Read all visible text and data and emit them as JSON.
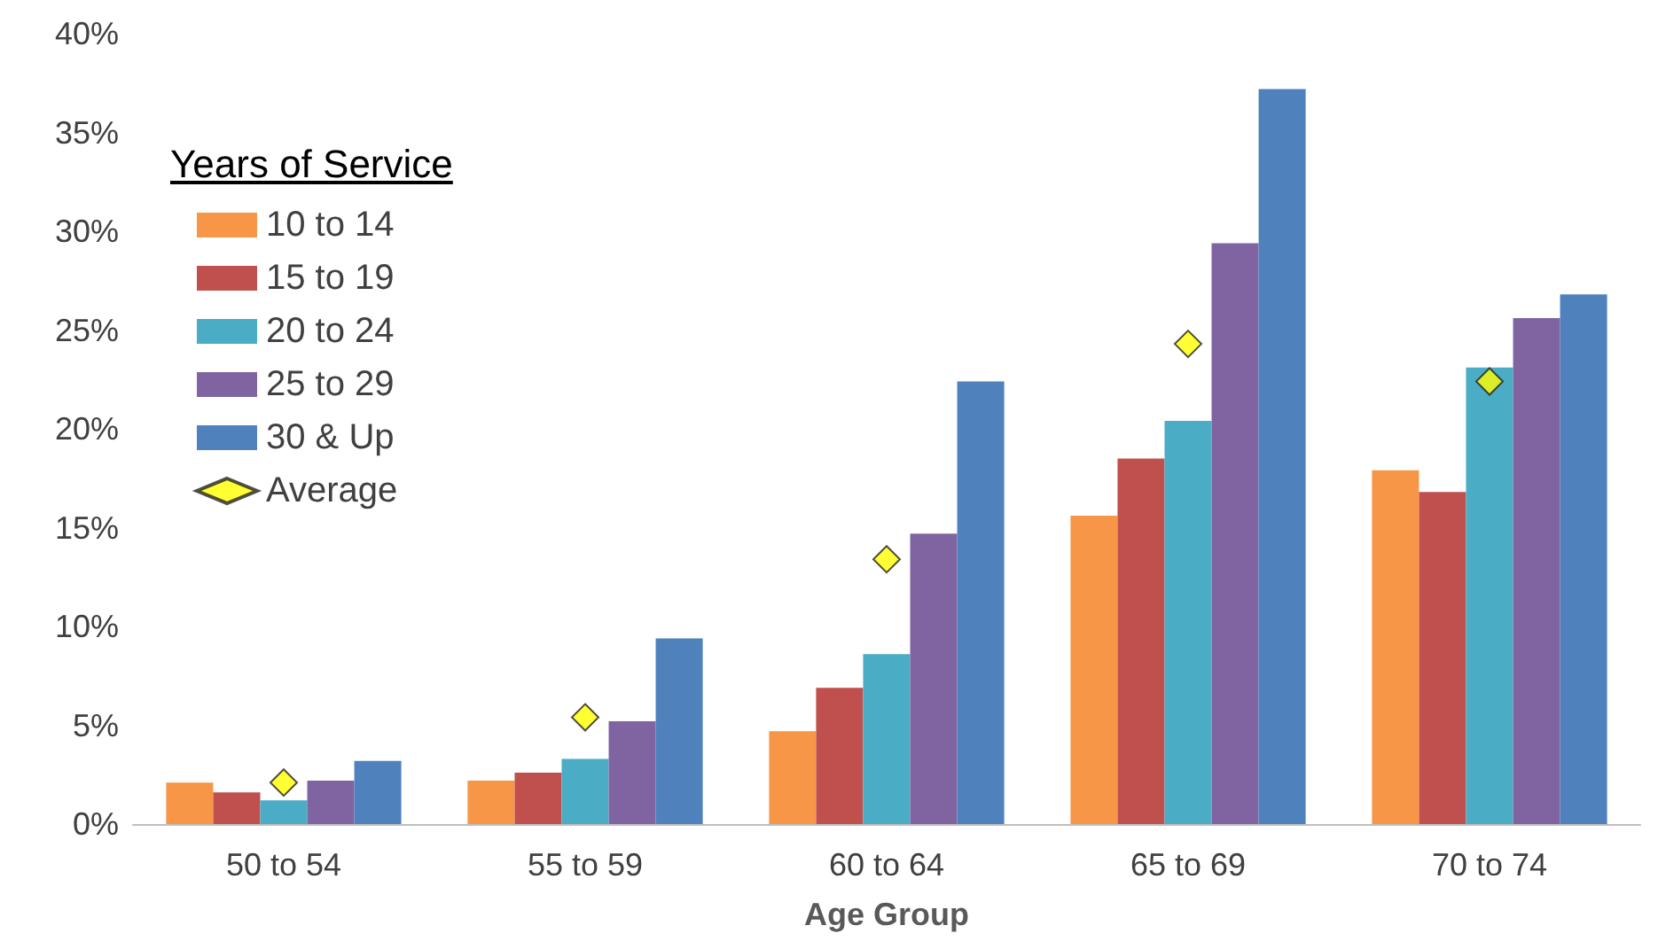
{
  "chart_data": {
    "type": "bar",
    "xlabel": "Age Group",
    "legend_title": "Years of Service",
    "legend": "top left",
    "categories": [
      "50 to 54",
      "55 to 59",
      "60 to 64",
      "65 to 69",
      "70 to 74"
    ],
    "series": [
      {
        "name": "10 to 14",
        "color": "#f79646",
        "values": [
          2.1,
          2.2,
          4.7,
          15.6,
          17.9
        ]
      },
      {
        "name": "15 to 19",
        "color": "#c0504d",
        "values": [
          1.6,
          2.6,
          6.9,
          18.5,
          16.8
        ]
      },
      {
        "name": "20 to 24",
        "color": "#4bacc6",
        "values": [
          1.2,
          3.3,
          8.6,
          20.4,
          23.1
        ]
      },
      {
        "name": "25 to 29",
        "color": "#8064a2",
        "values": [
          2.2,
          5.2,
          14.7,
          29.4,
          25.6
        ]
      },
      {
        "name": "30 & Up",
        "color": "#4f81bd",
        "values": [
          3.2,
          9.4,
          22.4,
          37.2,
          26.8
        ]
      },
      {
        "name": "Average",
        "type": "scatter",
        "marker": "diamond",
        "color": "#ffff00",
        "x": [
          "50 to 54",
          "55 to 59",
          "60 to 64",
          "65 to 69",
          "70 to 74"
        ],
        "values": [
          2.1,
          5.4,
          13.4,
          24.3,
          22.4
        ]
      }
    ],
    "ylim": [
      0,
      40
    ],
    "yticks": [
      {
        "value": 0,
        "label": "0%"
      },
      {
        "value": 5,
        "label": "5%"
      },
      {
        "value": 10,
        "label": "10%"
      },
      {
        "value": 15,
        "label": "15%"
      },
      {
        "value": 20,
        "label": "20%"
      },
      {
        "value": 25,
        "label": "25%"
      },
      {
        "value": 30,
        "label": "30%"
      },
      {
        "value": 35,
        "label": "35%"
      },
      {
        "value": 40,
        "label": "40%"
      }
    ]
  }
}
